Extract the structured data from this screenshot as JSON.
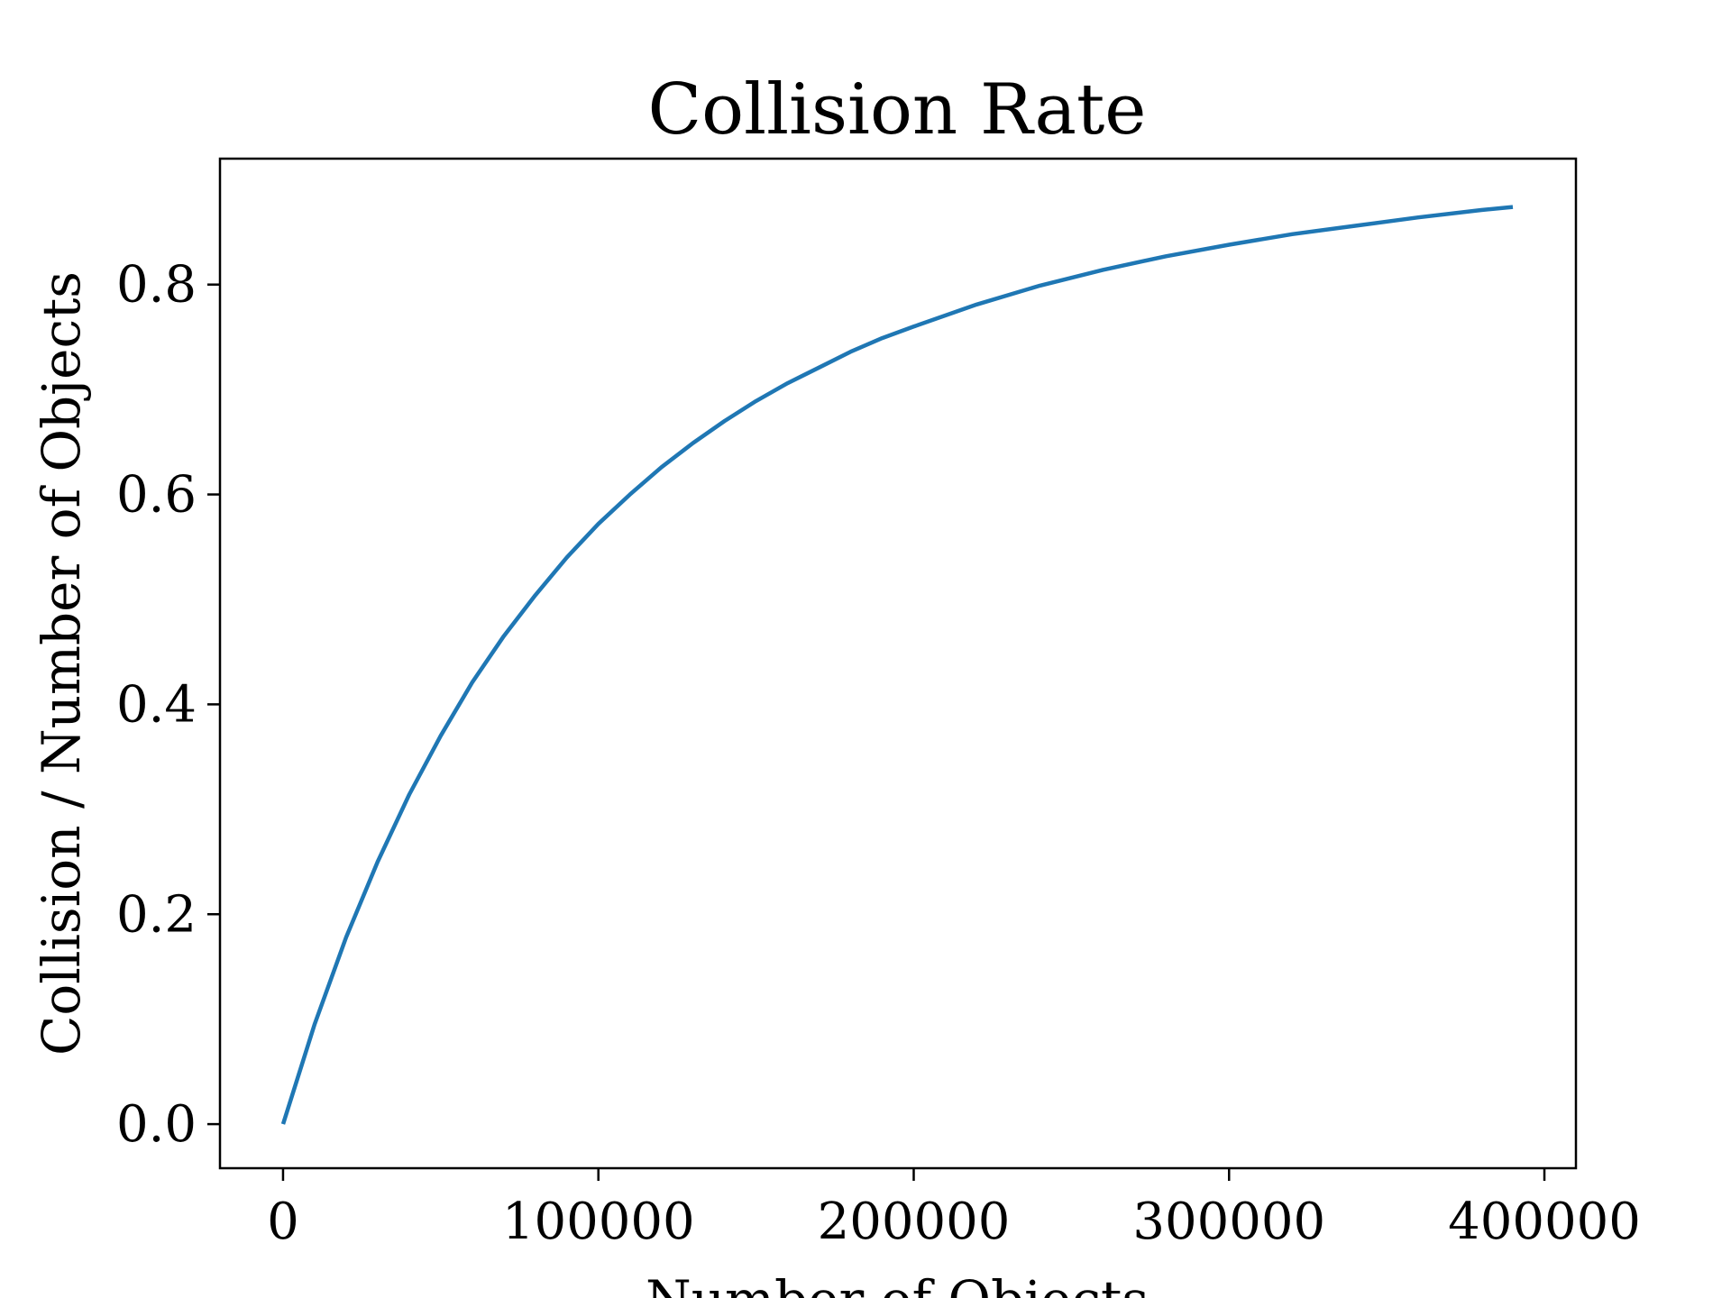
{
  "chart_data": {
    "type": "line",
    "title": "Collision Rate",
    "xlabel": "Number of Objects",
    "ylabel": "Collision / Number of Objects",
    "xlim": [
      -20000,
      410000
    ],
    "ylim": [
      -0.042,
      0.92
    ],
    "xticks": [
      0,
      100000,
      200000,
      300000,
      400000
    ],
    "xtick_labels": [
      "0",
      "100000",
      "200000",
      "300000",
      "400000"
    ],
    "yticks": [
      0.0,
      0.2,
      0.4,
      0.6,
      0.8
    ],
    "ytick_labels": [
      "0.0",
      "0.2",
      "0.4",
      "0.6",
      "0.8"
    ],
    "grid": false,
    "series": [
      {
        "color": "#1f77b4",
        "x": [
          0,
          10000,
          20000,
          30000,
          40000,
          50000,
          60000,
          70000,
          80000,
          90000,
          100000,
          110000,
          120000,
          130000,
          140000,
          150000,
          160000,
          170000,
          180000,
          190000,
          200000,
          220000,
          240000,
          260000,
          280000,
          300000,
          320000,
          340000,
          360000,
          380000,
          390000
        ],
        "y": [
          0.0,
          0.095,
          0.178,
          0.25,
          0.314,
          0.37,
          0.421,
          0.465,
          0.504,
          0.54,
          0.572,
          0.6,
          0.626,
          0.649,
          0.67,
          0.689,
          0.706,
          0.721,
          0.736,
          0.749,
          0.76,
          0.781,
          0.799,
          0.814,
          0.827,
          0.838,
          0.848,
          0.856,
          0.864,
          0.871,
          0.874
        ]
      }
    ]
  }
}
